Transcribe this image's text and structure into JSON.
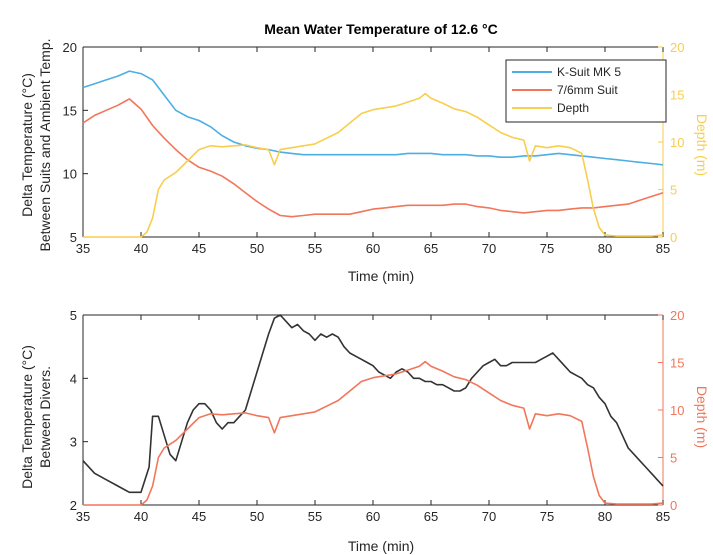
{
  "colors": {
    "ksuit": "#4DAEE4",
    "suit76": "#F2765A",
    "depth": "#F8CE4E",
    "delta": "#333333",
    "depth2": "#F2765A",
    "axis": "#262626"
  },
  "chart_data": [
    {
      "type": "line",
      "title": "Mean Water Temperature of 12.6 °C",
      "xlabel": "Time (min)",
      "ylabel_lines": [
        "Delta Temperature (°C)",
        "Between Suits and Ambient Temp."
      ],
      "y2label": "Depth (m)",
      "xlim": [
        35,
        85
      ],
      "ylim": [
        5,
        20
      ],
      "y2lim": [
        0,
        20
      ],
      "x_ticks": [
        "35",
        "40",
        "45",
        "50",
        "55",
        "60",
        "65",
        "70",
        "75",
        "80",
        "85"
      ],
      "y_ticks": [
        "5",
        "10",
        "15",
        "20"
      ],
      "y2_ticks": [
        "0",
        "5",
        "10",
        "15",
        "20"
      ],
      "legend_position": "top-right",
      "grid": false,
      "series": [
        {
          "name": "K-Suit MK 5",
          "axis": "left",
          "color_key": "ksuit",
          "x": [
            35,
            36,
            37,
            38,
            39,
            40,
            41,
            42,
            43,
            44,
            45,
            46,
            47,
            48,
            49,
            50,
            51,
            52,
            53,
            54,
            55,
            56,
            57,
            58,
            59,
            60,
            61,
            62,
            63,
            64,
            65,
            66,
            67,
            68,
            69,
            70,
            71,
            72,
            73,
            74,
            75,
            76,
            77,
            78,
            79,
            80,
            81,
            82,
            83,
            84,
            85
          ],
          "y": [
            16.8,
            17.1,
            17.4,
            17.7,
            18.1,
            17.9,
            17.4,
            16.2,
            15.0,
            14.5,
            14.2,
            13.7,
            13.0,
            12.5,
            12.2,
            12.0,
            11.9,
            11.7,
            11.6,
            11.5,
            11.5,
            11.5,
            11.5,
            11.5,
            11.5,
            11.5,
            11.5,
            11.5,
            11.6,
            11.6,
            11.6,
            11.5,
            11.5,
            11.5,
            11.4,
            11.4,
            11.3,
            11.3,
            11.4,
            11.4,
            11.5,
            11.6,
            11.5,
            11.4,
            11.3,
            11.2,
            11.1,
            11.0,
            10.9,
            10.8,
            10.7
          ]
        },
        {
          "name": "7/6mm Suit",
          "axis": "left",
          "color_key": "suit76",
          "x": [
            35,
            36,
            37,
            38,
            39,
            40,
            41,
            42,
            43,
            44,
            45,
            46,
            47,
            48,
            49,
            50,
            51,
            52,
            53,
            54,
            55,
            56,
            57,
            58,
            59,
            60,
            61,
            62,
            63,
            64,
            65,
            66,
            67,
            68,
            69,
            70,
            71,
            72,
            73,
            74,
            75,
            76,
            77,
            78,
            79,
            80,
            81,
            82,
            83,
            84,
            85
          ],
          "y": [
            14.0,
            14.6,
            15.0,
            15.4,
            15.9,
            15.1,
            13.8,
            12.8,
            11.9,
            11.1,
            10.5,
            10.2,
            9.8,
            9.2,
            8.5,
            7.8,
            7.2,
            6.7,
            6.6,
            6.7,
            6.8,
            6.8,
            6.8,
            6.8,
            7.0,
            7.2,
            7.3,
            7.4,
            7.5,
            7.5,
            7.5,
            7.5,
            7.6,
            7.6,
            7.4,
            7.3,
            7.1,
            7.0,
            6.9,
            7.0,
            7.1,
            7.1,
            7.2,
            7.3,
            7.3,
            7.4,
            7.5,
            7.6,
            7.9,
            8.2,
            8.5
          ]
        },
        {
          "name": "Depth",
          "axis": "right",
          "color_key": "depth",
          "x": [
            35,
            40,
            40.5,
            41,
            41.5,
            42,
            43,
            44,
            45,
            46,
            47,
            48,
            49,
            50,
            51,
            51.5,
            52,
            53,
            54,
            55,
            56,
            57,
            58,
            59,
            60,
            61,
            62,
            63,
            64,
            64.5,
            65,
            66,
            67,
            68,
            69,
            70,
            71,
            72,
            73,
            73.5,
            74,
            75,
            76,
            77,
            78,
            78.5,
            79,
            79.5,
            80,
            81,
            82,
            83,
            84,
            85
          ],
          "y": [
            0,
            0,
            0.5,
            2.0,
            5.0,
            6.0,
            6.8,
            8.0,
            9.2,
            9.6,
            9.5,
            9.6,
            9.7,
            9.4,
            9.2,
            7.6,
            9.2,
            9.4,
            9.6,
            9.8,
            10.4,
            11.0,
            12.0,
            13.0,
            13.4,
            13.6,
            13.8,
            14.2,
            14.6,
            15.1,
            14.6,
            14.1,
            13.5,
            13.2,
            12.6,
            11.8,
            11.0,
            10.5,
            10.2,
            8.0,
            9.6,
            9.4,
            9.6,
            9.4,
            8.8,
            6.0,
            3.0,
            1.0,
            0.2,
            0.1,
            0.1,
            0.1,
            0.1,
            0.2
          ]
        }
      ]
    },
    {
      "type": "line",
      "title": "",
      "xlabel": "Time (min)",
      "ylabel_lines": [
        "Delta Temperature (°C)",
        "Between Divers."
      ],
      "y2label": "Depth (m)",
      "xlim": [
        35,
        85
      ],
      "ylim": [
        2,
        5
      ],
      "y2lim": [
        0,
        20
      ],
      "x_ticks": [
        "35",
        "40",
        "45",
        "50",
        "55",
        "60",
        "65",
        "70",
        "75",
        "80",
        "85"
      ],
      "y_ticks": [
        "2",
        "3",
        "4",
        "5"
      ],
      "y2_ticks": [
        "0",
        "5",
        "10",
        "15",
        "20"
      ],
      "grid": false,
      "series": [
        {
          "axis": "left",
          "color_key": "delta",
          "x": [
            35,
            36,
            37,
            38,
            39,
            40,
            40.7,
            41,
            41.5,
            42,
            42.5,
            43,
            43.5,
            44,
            44.5,
            45,
            45.5,
            46,
            46.5,
            47,
            47.5,
            48,
            48.5,
            49,
            49.5,
            50,
            50.5,
            51,
            51.5,
            52,
            52.5,
            53,
            53.5,
            54,
            54.5,
            55,
            55.5,
            56,
            56.5,
            57,
            57.5,
            58,
            58.5,
            59,
            59.5,
            60,
            60.5,
            61,
            61.5,
            62,
            62.5,
            63,
            63.5,
            64,
            64.5,
            65,
            65.5,
            66,
            66.5,
            67,
            67.5,
            68,
            68.5,
            69,
            69.5,
            70,
            70.5,
            71,
            71.5,
            72,
            72.5,
            73,
            73.5,
            74,
            74.5,
            75,
            75.5,
            76,
            76.5,
            77,
            77.5,
            78,
            78.5,
            79,
            79.5,
            80,
            80.5,
            81,
            81.5,
            82,
            82.5,
            83,
            83.5,
            84,
            84.5,
            85
          ],
          "y": [
            2.7,
            2.5,
            2.4,
            2.3,
            2.2,
            2.2,
            2.6,
            3.4,
            3.4,
            3.1,
            2.8,
            2.7,
            3.0,
            3.3,
            3.5,
            3.6,
            3.6,
            3.5,
            3.3,
            3.2,
            3.3,
            3.3,
            3.4,
            3.5,
            3.8,
            4.1,
            4.4,
            4.7,
            4.95,
            5.0,
            4.9,
            4.8,
            4.85,
            4.75,
            4.7,
            4.6,
            4.7,
            4.65,
            4.7,
            4.65,
            4.5,
            4.4,
            4.35,
            4.3,
            4.25,
            4.2,
            4.1,
            4.05,
            4.0,
            4.1,
            4.15,
            4.1,
            4.0,
            4.0,
            3.95,
            3.95,
            3.9,
            3.9,
            3.85,
            3.8,
            3.8,
            3.85,
            4.0,
            4.1,
            4.2,
            4.25,
            4.3,
            4.2,
            4.2,
            4.25,
            4.25,
            4.25,
            4.25,
            4.25,
            4.3,
            4.35,
            4.4,
            4.3,
            4.2,
            4.1,
            4.05,
            4.0,
            3.9,
            3.85,
            3.7,
            3.6,
            3.4,
            3.3,
            3.1,
            2.9,
            2.8,
            2.7,
            2.6,
            2.5,
            2.4,
            2.3
          ]
        },
        {
          "axis": "right",
          "color_key": "depth2",
          "x": [
            35,
            40,
            40.5,
            41,
            41.5,
            42,
            43,
            44,
            45,
            46,
            47,
            48,
            49,
            50,
            51,
            51.5,
            52,
            53,
            54,
            55,
            56,
            57,
            58,
            59,
            60,
            61,
            62,
            63,
            64,
            64.5,
            65,
            66,
            67,
            68,
            69,
            70,
            71,
            72,
            73,
            73.5,
            74,
            75,
            76,
            77,
            78,
            78.5,
            79,
            79.5,
            80,
            81,
            82,
            83,
            84,
            85
          ],
          "y": [
            0,
            0,
            0.5,
            2.0,
            5.0,
            6.0,
            6.8,
            8.0,
            9.2,
            9.6,
            9.5,
            9.6,
            9.7,
            9.4,
            9.2,
            7.6,
            9.2,
            9.4,
            9.6,
            9.8,
            10.4,
            11.0,
            12.0,
            13.0,
            13.4,
            13.6,
            13.8,
            14.2,
            14.6,
            15.1,
            14.6,
            14.1,
            13.5,
            13.2,
            12.6,
            11.8,
            11.0,
            10.5,
            10.2,
            8.0,
            9.6,
            9.4,
            9.6,
            9.4,
            8.8,
            6.0,
            3.0,
            1.0,
            0.2,
            0.1,
            0.1,
            0.1,
            0.1,
            0.2
          ]
        }
      ]
    }
  ]
}
